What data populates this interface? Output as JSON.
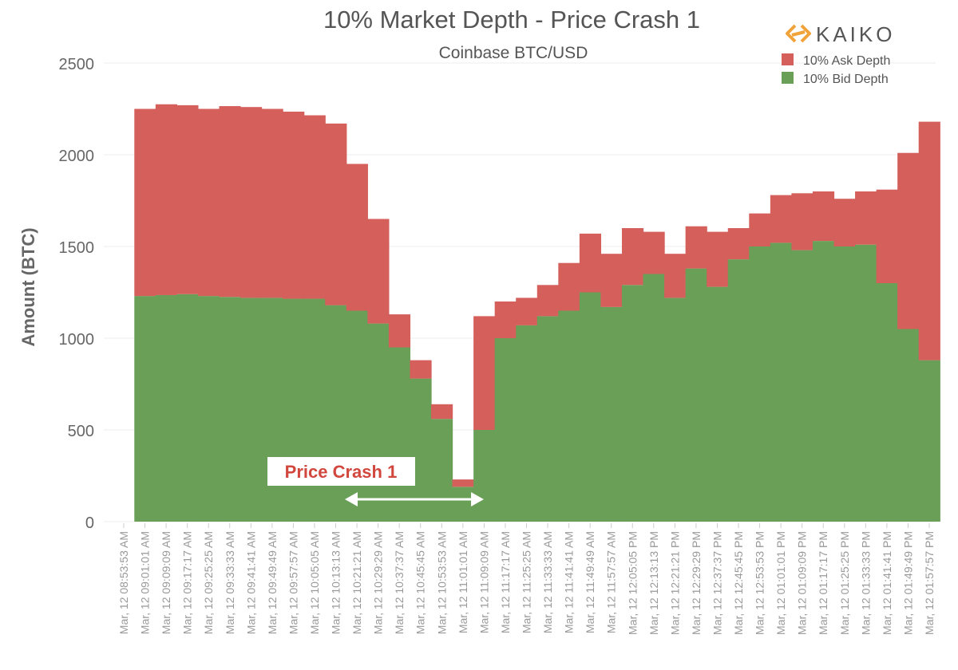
{
  "chart_data": {
    "type": "bar",
    "stacked": true,
    "title": "10% Market Depth - Price Crash 1",
    "subtitle": "Coinbase BTC/USD",
    "brand": "KAIKO",
    "ylabel": "Amount (BTC)",
    "xlabel": "",
    "ylim": [
      0,
      2500
    ],
    "yticks": [
      0,
      500,
      1000,
      1500,
      2000,
      2500
    ],
    "grid": true,
    "legend_position": "top-right",
    "annotation": {
      "label": "Price Crash 1",
      "from": "Mar, 12 10:21:21 AM",
      "to": "Mar, 12 11:09:09 AM"
    },
    "categories": [
      "Mar, 12 08:53:53 AM",
      "Mar, 12 09:01:01 AM",
      "Mar, 12 09:09:09 AM",
      "Mar, 12 09:17:17 AM",
      "Mar, 12 09:25:25 AM",
      "Mar, 12 09:33:33 AM",
      "Mar, 12 09:41:41 AM",
      "Mar, 12 09:49:49 AM",
      "Mar, 12 09:57:57 AM",
      "Mar, 12 10:05:05 AM",
      "Mar, 12 10:13:13 AM",
      "Mar, 12 10:21:21 AM",
      "Mar, 12 10:29:29 AM",
      "Mar, 12 10:37:37 AM",
      "Mar, 12 10:45:45 AM",
      "Mar, 12 10:53:53 AM",
      "Mar, 12 11:01:01 AM",
      "Mar, 12 11:09:09 AM",
      "Mar, 12 11:17:17 AM",
      "Mar, 12 11:25:25 AM",
      "Mar, 12 11:33:33 AM",
      "Mar, 12 11:41:41 AM",
      "Mar, 12 11:49:49 AM",
      "Mar, 12 11:57:57 AM",
      "Mar, 12 12:05:05 PM",
      "Mar, 12 12:13:13 PM",
      "Mar, 12 12:21:21 PM",
      "Mar, 12 12:29:29 PM",
      "Mar, 12 12:37:37 PM",
      "Mar, 12 12:45:45 PM",
      "Mar, 12 12:53:53 PM",
      "Mar, 12 01:01:01 PM",
      "Mar, 12 01:09:09 PM",
      "Mar, 12 01:17:17 PM",
      "Mar, 12 01:25:25 PM",
      "Mar, 12 01:33:33 PM",
      "Mar, 12 01:41:41 PM",
      "Mar, 12 01:49:49 PM",
      "Mar, 12 01:57:57 PM"
    ],
    "series": [
      {
        "name": "10% Bid Depth",
        "color": "#6a9f58",
        "values": [
          null,
          1230,
          1235,
          1240,
          1230,
          1225,
          1220,
          1220,
          1215,
          1215,
          1180,
          1150,
          1080,
          950,
          780,
          560,
          190,
          500,
          1000,
          1070,
          1120,
          1150,
          1250,
          1170,
          1290,
          1350,
          1220,
          1380,
          1280,
          1430,
          1500,
          1520,
          1480,
          1530,
          1500,
          1510,
          1300,
          1050,
          880
        ]
      },
      {
        "name": "10% Ask Depth",
        "color": "#d45f5b",
        "values": [
          null,
          1020,
          1040,
          1030,
          1020,
          1040,
          1040,
          1030,
          1020,
          1000,
          990,
          800,
          570,
          180,
          100,
          80,
          40,
          620,
          200,
          150,
          170,
          260,
          320,
          290,
          310,
          230,
          240,
          230,
          300,
          170,
          180,
          260,
          310,
          270,
          260,
          290,
          510,
          960,
          1300
        ]
      }
    ]
  }
}
